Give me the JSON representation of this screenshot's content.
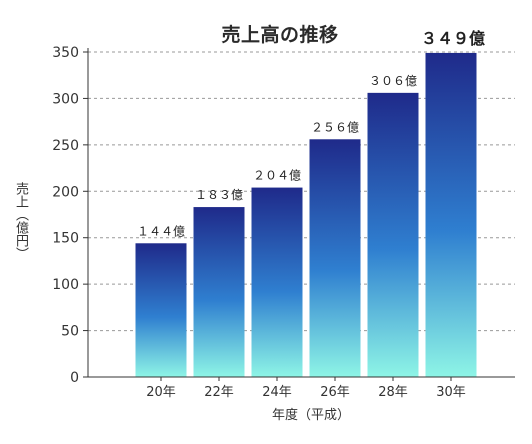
{
  "chart_data": {
    "type": "bar",
    "title": "売上高の推移",
    "ylabel": "売上（億円）",
    "xlabel": "年度（平成）",
    "categories": [
      "20年",
      "22年",
      "24年",
      "26年",
      "28年",
      "30年"
    ],
    "values": [
      144,
      183,
      204,
      256,
      306,
      349
    ],
    "data_labels": [
      "１４４億",
      "１８３億",
      "２０４億",
      "２５６億",
      "３０６億",
      "３４９億"
    ],
    "ylim": [
      0,
      350
    ],
    "yticks": [
      0,
      50,
      100,
      150,
      200,
      250,
      300,
      350
    ],
    "grid": "horizontal dashed",
    "colors": {
      "bar_top": "#1f2a8a",
      "bar_mid": "#2f7fd0",
      "bar_bottom": "#8ef5e6",
      "grid": "#999999"
    }
  }
}
